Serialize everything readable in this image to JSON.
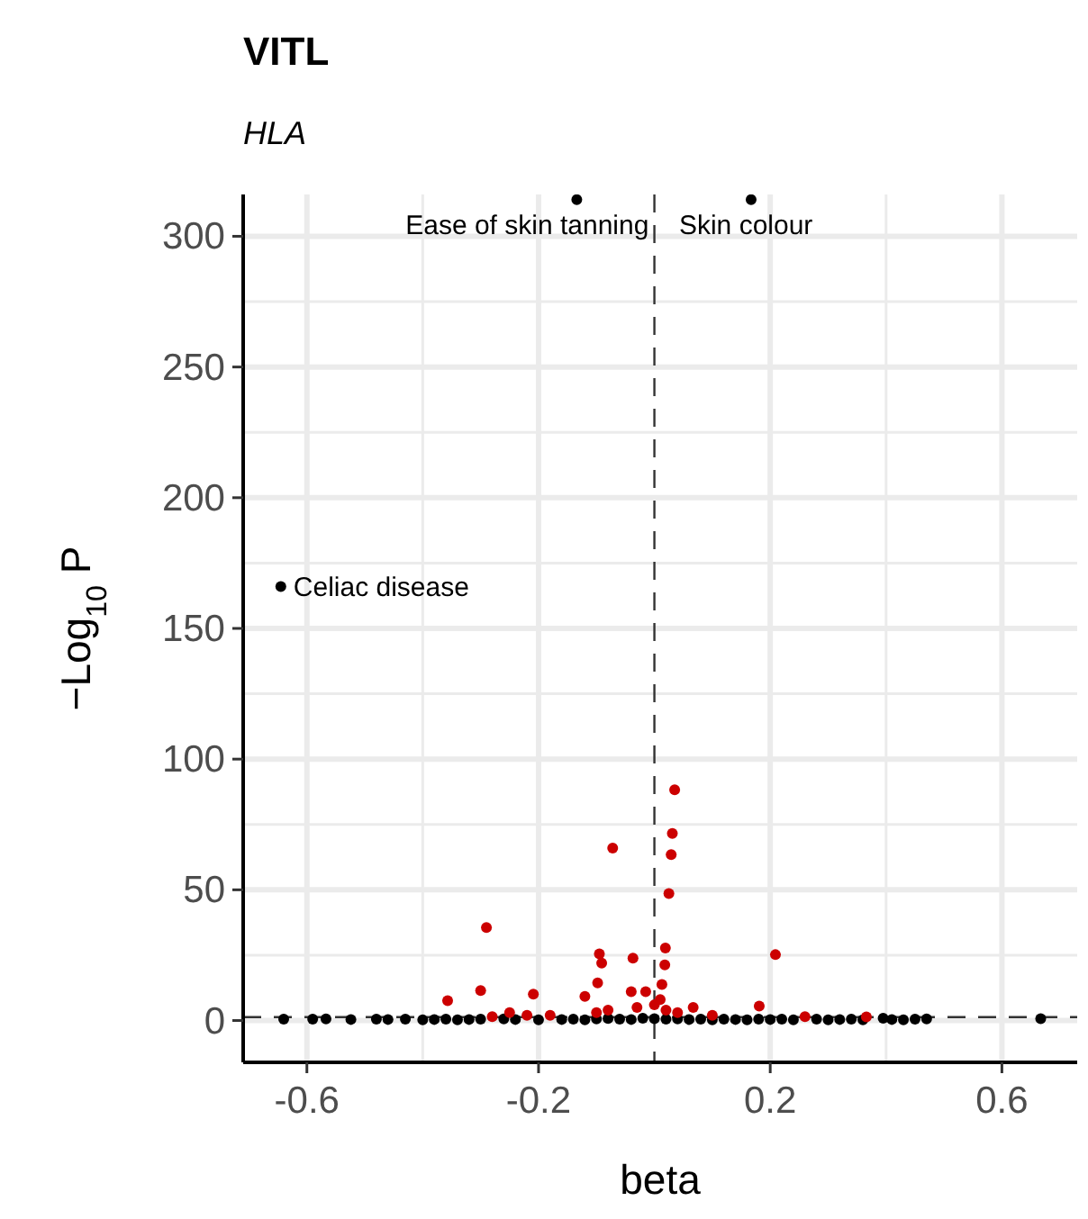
{
  "chart_data": {
    "type": "scatter",
    "title": "VITL",
    "subtitle": "HLA",
    "xlabel": "beta",
    "ylabel": "−Log$_{10}$ P",
    "xlim": [
      -0.71,
      0.73
    ],
    "ylim": [
      -16,
      316
    ],
    "xticks": [
      -0.6,
      -0.2,
      0.2,
      0.6
    ],
    "yticks": [
      0,
      50,
      100,
      150,
      200,
      250,
      300
    ],
    "grid": true,
    "marker": "circle",
    "series": [
      {
        "color": "#000000",
        "x": [
          -0.645,
          -0.64,
          -0.59,
          -0.567,
          -0.524,
          -0.48,
          -0.46,
          -0.43,
          -0.4,
          -0.38,
          -0.36,
          -0.34,
          -0.32,
          -0.3,
          -0.26,
          -0.24,
          -0.2,
          -0.16,
          -0.14,
          -0.12,
          -0.1,
          -0.08,
          -0.06,
          -0.04,
          -0.02,
          0,
          0.02,
          0.04,
          0.06,
          0.08,
          0.1,
          0.12,
          0.14,
          0.16,
          0.18,
          0.2,
          0.22,
          0.24,
          0.28,
          0.3,
          0.32,
          0.34,
          0.36,
          0.395,
          0.41,
          0.43,
          0.45,
          0.47,
          0.667,
          -0.134,
          0.167
        ],
        "values": [
          166,
          0.5,
          0.5,
          0.6,
          0.4,
          0.5,
          0.4,
          0.5,
          0.3,
          0.4,
          0.5,
          0.3,
          0.4,
          0.5,
          0.6,
          0.4,
          0.3,
          0.4,
          0.5,
          0.3,
          0.6,
          0.8,
          0.5,
          0.4,
          0.9,
          0.7,
          0.5,
          0.6,
          0.4,
          0.5,
          0.3,
          0.5,
          0.4,
          0.3,
          0.5,
          0.4,
          0.5,
          0.3,
          0.5,
          0.3,
          0.4,
          0.5,
          0.3,
          0.9,
          0.4,
          0.3,
          0.5,
          0.6,
          0.7,
          314,
          314
        ]
      },
      {
        "color": "#cc0000",
        "x": [
          0.035,
          0.031,
          0.029,
          0.025,
          -0.072,
          -0.29,
          -0.095,
          -0.091,
          -0.037,
          0.019,
          0.018,
          0.209,
          -0.3,
          -0.357,
          -0.209,
          -0.098,
          -0.12,
          -0.04,
          -0.015,
          0.013,
          0.181,
          0.067,
          0.366,
          -0.25,
          -0.18,
          -0.1,
          -0.08,
          -0.03,
          0,
          0.01,
          0.02,
          0.04,
          0.1,
          -0.28,
          -0.22,
          0.26
        ],
        "values": [
          88.3,
          71.6,
          63.5,
          48.6,
          66,
          35.6,
          25.5,
          22,
          23.9,
          27.7,
          21.3,
          25.2,
          11.5,
          7.6,
          10.1,
          14.4,
          9.2,
          11,
          11,
          13.8,
          5.5,
          5,
          1.4,
          3,
          2,
          3,
          4,
          5,
          6,
          8,
          4,
          3,
          2,
          1.5,
          2,
          1.5
        ]
      }
    ],
    "ref_lines": [
      {
        "axis": "x",
        "value": 0,
        "line_style": "dashed"
      },
      {
        "axis": "y",
        "value": 1.3,
        "line_style": "dashed"
      }
    ],
    "annotations": [
      {
        "text": "Ease of skin tanning",
        "x": -0.134,
        "y": 314
      },
      {
        "text": "Skin colour",
        "x": 0.167,
        "y": 314
      },
      {
        "text": "Celiac disease",
        "x": -0.645,
        "y": 166
      }
    ]
  }
}
